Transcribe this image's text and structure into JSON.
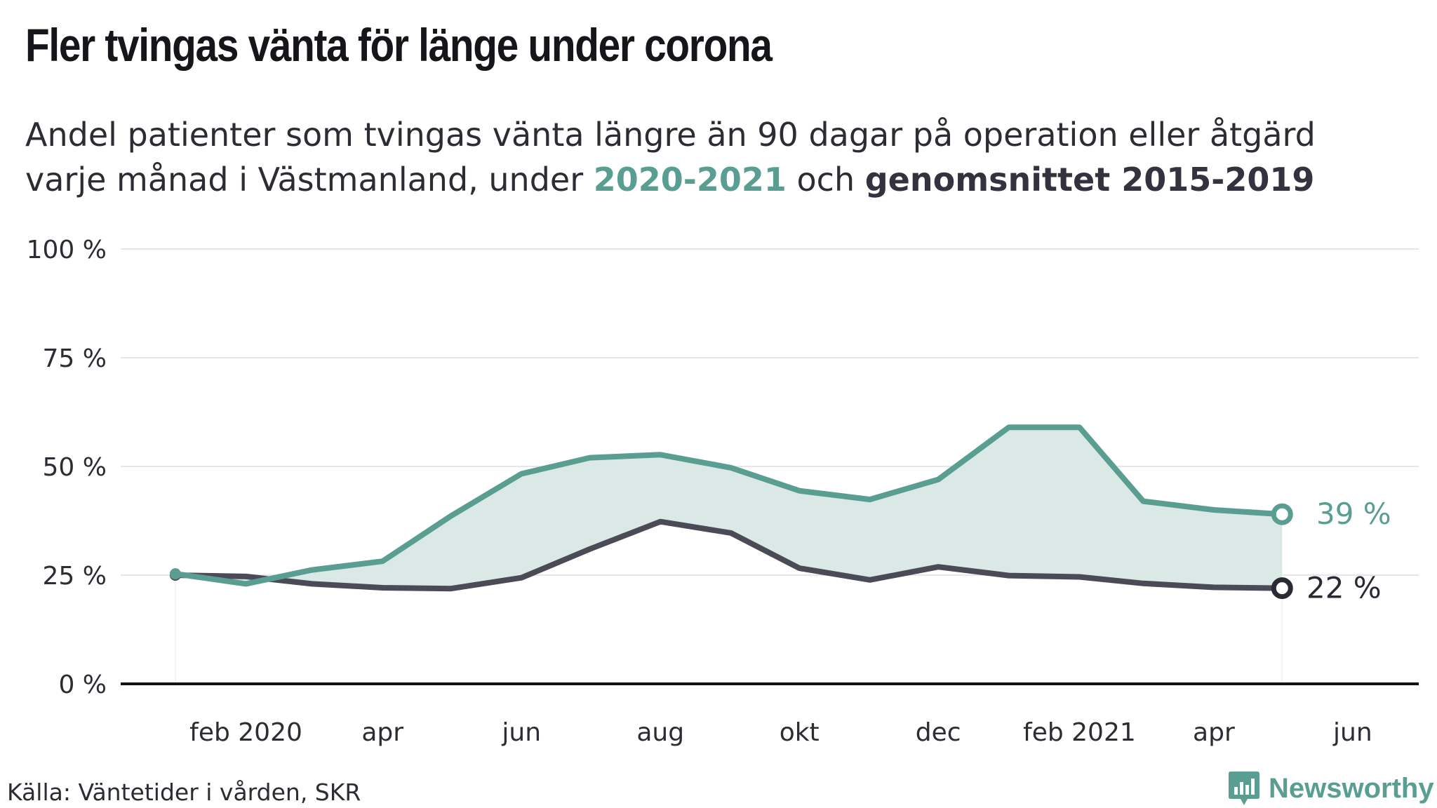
{
  "header": {
    "title": "Fler tvingas vänta för länge under corona",
    "subtitle_line1": "Andel patienter som tvingas vänta längre än 90 dagar på operation eller åtgärd",
    "subtitle_line2_pre": "varje månad i Västmanland, under ",
    "subtitle_hl_a": "2020-2021",
    "subtitle_mid": " och ",
    "subtitle_hl_b": "genomsnittet 2015-2019"
  },
  "footer": {
    "source": "Källa: Väntetider i vården, SKR",
    "logo_text": "Newsworthy"
  },
  "colors": {
    "series_2020_2021": "#5a9e92",
    "series_avg": "#4a4b57",
    "fill": "#dbe9e6",
    "grid": "#e6e6e6",
    "axis": "#111111"
  },
  "chart_data": {
    "type": "line",
    "title": "Fler tvingas vänta för länge under corona",
    "subtitle": "Andel patienter som tvingas vänta längre än 90 dagar på operation eller åtgärd varje månad i Västmanland, under 2020-2021 och genomsnittet 2015-2019",
    "x": [
      "2020-01",
      "2020-02",
      "2020-03",
      "2020-04",
      "2020-05",
      "2020-06",
      "2020-07",
      "2020-08",
      "2020-09",
      "2020-10",
      "2020-11",
      "2020-12",
      "2021-01",
      "2021-02",
      "2021-03",
      "2021-04",
      "2021-05"
    ],
    "x_ticks": [
      {
        "x": "2020-02",
        "label": "feb 2020"
      },
      {
        "x": "2020-04",
        "label": "apr"
      },
      {
        "x": "2020-06",
        "label": "jun"
      },
      {
        "x": "2020-08",
        "label": "aug"
      },
      {
        "x": "2020-10",
        "label": "okt"
      },
      {
        "x": "2020-12",
        "label": "dec"
      },
      {
        "x": "2021-02",
        "label": "feb 2021"
      },
      {
        "x": "2021-04",
        "label": "apr"
      },
      {
        "x": "2021-06",
        "label": "jun"
      }
    ],
    "x_range": [
      "2019-12-08",
      "2021-06-30"
    ],
    "y_ticks": [
      0,
      25,
      50,
      75,
      100
    ],
    "y_tick_labels": [
      "0 %",
      "25 %",
      "50 %",
      "75 %",
      "100 %"
    ],
    "ylim": [
      0,
      100
    ],
    "grid": true,
    "series": [
      {
        "name": "2020-2021",
        "color": "#5a9e92",
        "values": [
          25.3,
          23.0,
          26.2,
          28.2,
          38.6,
          48.3,
          52.0,
          52.7,
          49.7,
          44.4,
          42.4,
          47.0,
          59.0,
          59.0,
          42.0,
          40.0,
          39.0
        ],
        "end_label": "39 %"
      },
      {
        "name": "genomsnittet 2015-2019",
        "color": "#4a4b57",
        "values": [
          25.0,
          24.7,
          23.0,
          22.1,
          21.9,
          24.4,
          31.0,
          37.3,
          34.7,
          26.6,
          23.9,
          26.9,
          24.9,
          24.6,
          23.1,
          22.2,
          22.0
        ],
        "end_label": "22 %"
      }
    ]
  }
}
